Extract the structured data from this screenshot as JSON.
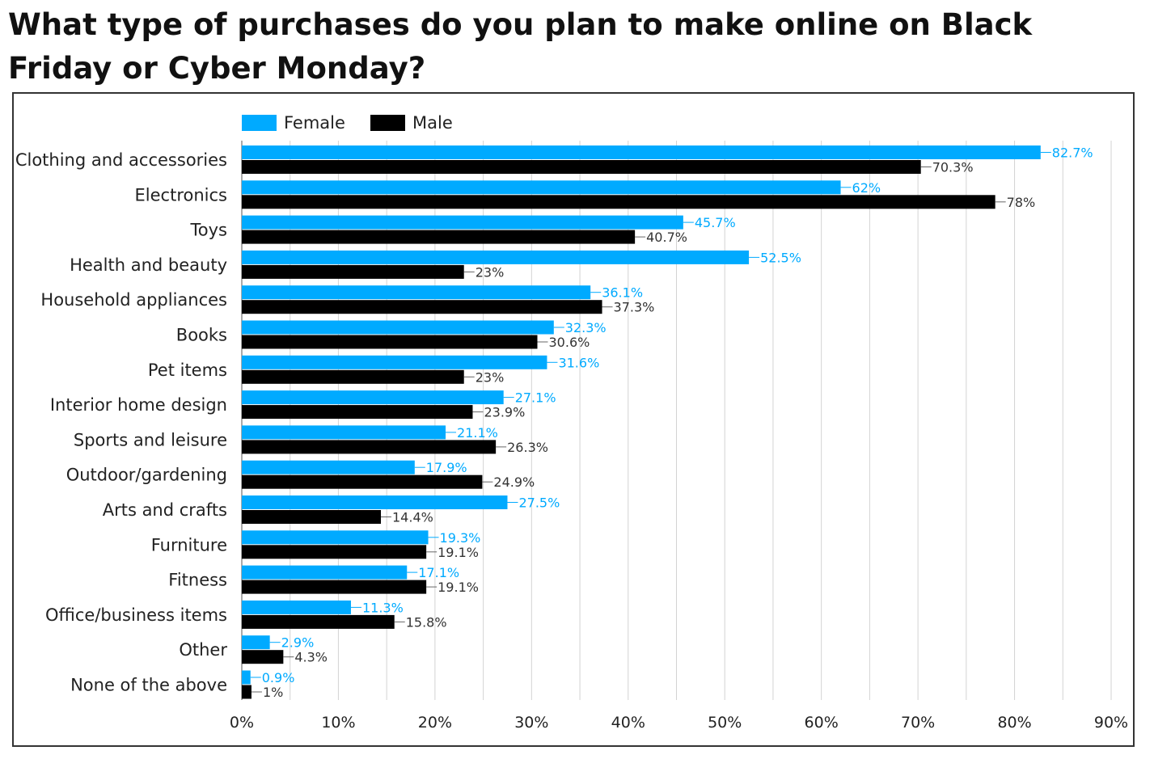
{
  "chart_data": {
    "type": "bar",
    "orientation": "horizontal",
    "title": "What type of purchases do you plan to make online on Black Friday or Cyber Monday?",
    "categories": [
      "Clothing and accessories",
      "Electronics",
      "Toys",
      "Health and beauty",
      "Household appliances",
      "Books",
      "Pet items",
      "Interior home design",
      "Sports and leisure",
      "Outdoor/gardening",
      "Arts and crafts",
      "Furniture",
      "Fitness",
      "Office/business items",
      "Other",
      "None of the above"
    ],
    "series": [
      {
        "name": "Female",
        "color": "#00aaff",
        "values": [
          82.7,
          62,
          45.7,
          52.5,
          36.1,
          32.3,
          31.6,
          27.1,
          21.1,
          17.9,
          27.5,
          19.3,
          17.1,
          11.3,
          2.9,
          0.9
        ],
        "labels": [
          "82.7%",
          "62%",
          "45.7%",
          "52.5%",
          "36.1%",
          "32.3%",
          "31.6%",
          "27.1%",
          "21.1%",
          "17.9%",
          "27.5%",
          "19.3%",
          "17.1%",
          "11.3%",
          "2.9%",
          "0.9%"
        ]
      },
      {
        "name": "Male",
        "color": "#000000",
        "values": [
          70.3,
          78,
          40.7,
          23,
          37.3,
          30.6,
          23,
          23.9,
          26.3,
          24.9,
          14.4,
          19.1,
          19.1,
          15.8,
          4.3,
          1
        ],
        "labels": [
          "70.3%",
          "78%",
          "40.7%",
          "23%",
          "37.3%",
          "30.6%",
          "23%",
          "23.9%",
          "26.3%",
          "24.9%",
          "14.4%",
          "19.1%",
          "19.1%",
          "15.8%",
          "4.3%",
          "1%"
        ]
      }
    ],
    "xlim": [
      0,
      90
    ],
    "xticks": [
      0,
      10,
      20,
      30,
      40,
      50,
      60,
      70,
      80,
      90
    ],
    "xtick_labels": [
      "0%",
      "10%",
      "20%",
      "30%",
      "40%",
      "50%",
      "60%",
      "70%",
      "80%",
      "90%"
    ],
    "grid": "vertical",
    "legend": "top-left"
  }
}
